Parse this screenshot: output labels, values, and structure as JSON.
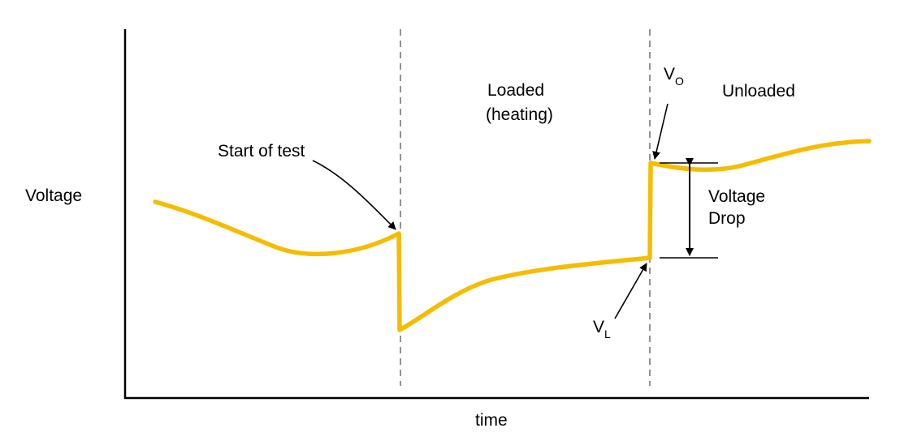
{
  "labels": {
    "y_axis": "Voltage",
    "x_axis": "time",
    "start_of_test": "Start of test",
    "loaded_line1": "Loaded",
    "loaded_line2": "(heating)",
    "unloaded": "Unloaded",
    "voltage_drop_line1": "Voltage",
    "voltage_drop_line2": "Drop",
    "v_open_main": "V",
    "v_open_sub": "O",
    "v_loaded_main": "V",
    "v_loaded_sub": "L"
  },
  "colors": {
    "curve": "#F5BC00",
    "axis": "#000000",
    "divider": "#777777",
    "arrow": "#000000"
  }
}
